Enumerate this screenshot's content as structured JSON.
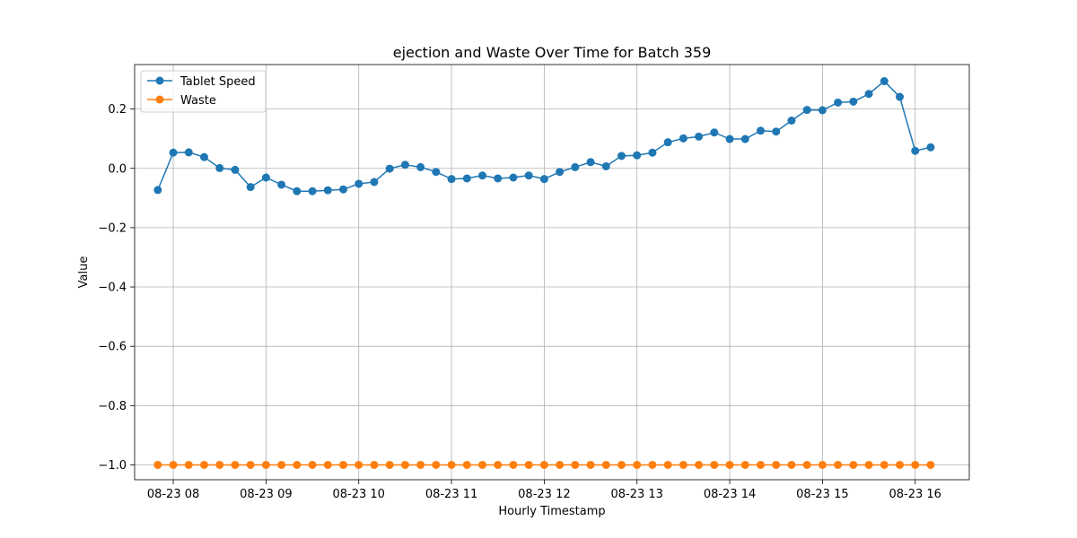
{
  "chart_data": {
    "type": "line",
    "title": "ejection and Waste Over Time for Batch 359",
    "xlabel": "Hourly Timestamp",
    "ylabel": "Value",
    "x_tick_labels": [
      "08-23 08",
      "08-23 09",
      "08-23 10",
      "08-23 11",
      "08-23 12",
      "08-23 13",
      "08-23 14",
      "08-23 15",
      "08-23 16"
    ],
    "y_tick_labels": [
      "−1.0",
      "−0.8",
      "−0.6",
      "−0.4",
      "−0.2",
      "0.0",
      "0.2"
    ],
    "y_ticks": [
      -1.0,
      -0.8,
      -0.6,
      -0.4,
      -0.2,
      0.0,
      0.2
    ],
    "ylim": [
      -1.05,
      0.35
    ],
    "xlim": [
      "08-23 07:35",
      "08-23 16:35"
    ],
    "grid": true,
    "legend_position": "top-left",
    "x": [
      "08-23 07:50",
      "08-23 08:00",
      "08-23 08:10",
      "08-23 08:20",
      "08-23 08:30",
      "08-23 08:40",
      "08-23 08:50",
      "08-23 09:00",
      "08-23 09:10",
      "08-23 09:20",
      "08-23 09:30",
      "08-23 09:40",
      "08-23 09:50",
      "08-23 10:00",
      "08-23 10:10",
      "08-23 10:20",
      "08-23 10:30",
      "08-23 10:40",
      "08-23 10:50",
      "08-23 11:00",
      "08-23 11:10",
      "08-23 11:20",
      "08-23 11:30",
      "08-23 11:40",
      "08-23 11:50",
      "08-23 12:00",
      "08-23 12:10",
      "08-23 12:20",
      "08-23 12:30",
      "08-23 12:40",
      "08-23 12:50",
      "08-23 13:00",
      "08-23 13:10",
      "08-23 13:20",
      "08-23 13:30",
      "08-23 13:40",
      "08-23 13:50",
      "08-23 14:00",
      "08-23 14:10",
      "08-23 14:20",
      "08-23 14:30",
      "08-23 14:40",
      "08-23 14:50",
      "08-23 15:00",
      "08-23 15:10",
      "08-23 15:20",
      "08-23 15:30",
      "08-23 15:40",
      "08-23 15:50",
      "08-23 16:00",
      "08-23 16:10"
    ],
    "series": [
      {
        "name": "Tablet Speed",
        "color": "#1f77b4",
        "values": [
          -0.073,
          0.053,
          0.054,
          0.038,
          0.001,
          -0.005,
          -0.063,
          -0.031,
          -0.055,
          -0.077,
          -0.077,
          -0.074,
          -0.071,
          -0.052,
          -0.046,
          -0.001,
          0.012,
          0.004,
          -0.012,
          -0.036,
          -0.034,
          -0.024,
          -0.034,
          -0.031,
          -0.024,
          -0.036,
          -0.012,
          0.004,
          0.021,
          0.007,
          0.042,
          0.044,
          0.053,
          0.088,
          0.101,
          0.107,
          0.121,
          0.099,
          0.099,
          0.127,
          0.124,
          0.161,
          0.197,
          0.196,
          0.222,
          0.225,
          0.251,
          0.294,
          0.241,
          0.059,
          0.071
        ]
      },
      {
        "name": "Waste",
        "color": "#ff7f0e",
        "values": [
          -1.0,
          -1.0,
          -1.0,
          -1.0,
          -1.0,
          -1.0,
          -1.0,
          -1.0,
          -1.0,
          -1.0,
          -1.0,
          -1.0,
          -1.0,
          -1.0,
          -1.0,
          -1.0,
          -1.0,
          -1.0,
          -1.0,
          -1.0,
          -1.0,
          -1.0,
          -1.0,
          -1.0,
          -1.0,
          -1.0,
          -1.0,
          -1.0,
          -1.0,
          -1.0,
          -1.0,
          -1.0,
          -1.0,
          -1.0,
          -1.0,
          -1.0,
          -1.0,
          -1.0,
          -1.0,
          -1.0,
          -1.0,
          -1.0,
          -1.0,
          -1.0,
          -1.0,
          -1.0,
          -1.0,
          -1.0,
          -1.0,
          -1.0,
          -1.0
        ]
      }
    ]
  }
}
